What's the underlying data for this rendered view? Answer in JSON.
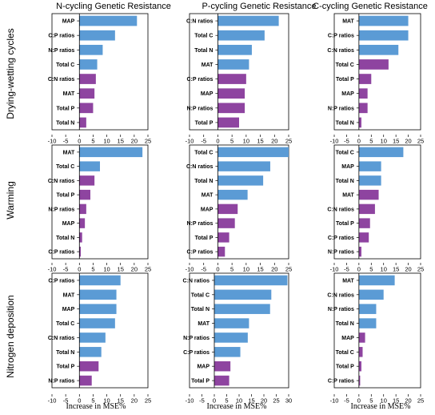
{
  "column_titles": [
    "N-cycling Genetic Resistance",
    "P-cycling Genetic Resistance",
    "C-cycling Genetic Resistance"
  ],
  "row_titles": [
    "Drying-wetting cycles",
    "Warming",
    "Nitrogen deposition"
  ],
  "colors": {
    "blue": "#5b9bd5",
    "purple": "#8e44a0"
  },
  "chart_data": [
    {
      "type": "bar",
      "orientation": "horizontal",
      "title": "N-cycling Genetic Resistance",
      "row": "Drying-wetting cycles",
      "xlim": [
        -10,
        25
      ],
      "xticks": [
        -10,
        -5,
        0,
        5,
        10,
        15,
        20,
        25
      ],
      "xlabel": "",
      "categories": [
        "MAP",
        "C:P ratios",
        "N:P ratios",
        "Total C",
        "C:N ratios",
        "MAT",
        "Total P",
        "Total N"
      ],
      "values": [
        21,
        13,
        8.5,
        6.5,
        6,
        5.5,
        5,
        2.5
      ],
      "colors": [
        "blue",
        "blue",
        "blue",
        "blue",
        "purple",
        "purple",
        "purple",
        "purple"
      ]
    },
    {
      "type": "bar",
      "orientation": "horizontal",
      "title": "P-cycling Genetic Resistance",
      "row": "Drying-wetting cycles",
      "xlim": [
        -10,
        25
      ],
      "xticks": [
        -10,
        -5,
        0,
        5,
        10,
        15,
        20,
        25
      ],
      "xlabel": "",
      "categories": [
        "C:N ratios",
        "Total C",
        "Total N",
        "MAT",
        "C:P ratios",
        "MAP",
        "N:P ratios",
        "Total P"
      ],
      "values": [
        21.5,
        16.5,
        12,
        11,
        10,
        9.5,
        9.5,
        7.5
      ],
      "colors": [
        "blue",
        "blue",
        "blue",
        "blue",
        "purple",
        "purple",
        "purple",
        "purple"
      ]
    },
    {
      "type": "bar",
      "orientation": "horizontal",
      "title": "C-cycling Genetic Resistance",
      "row": "Drying-wetting cycles",
      "xlim": [
        -10,
        25
      ],
      "xticks": [
        -10,
        -5,
        0,
        5,
        10,
        15,
        20,
        25
      ],
      "xlabel": "",
      "categories": [
        "MAT",
        "C:P ratios",
        "C:N ratios",
        "Total C",
        "Total P",
        "MAP",
        "N:P ratios",
        "Total N"
      ],
      "values": [
        20,
        20,
        16,
        12,
        5,
        3.5,
        3.5,
        1
      ],
      "colors": [
        "blue",
        "blue",
        "blue",
        "purple",
        "purple",
        "purple",
        "purple",
        "purple"
      ]
    },
    {
      "type": "bar",
      "orientation": "horizontal",
      "title": "",
      "row": "Warming",
      "xlim": [
        -10,
        25
      ],
      "xticks": [
        -10,
        -5,
        0,
        5,
        10,
        15,
        20,
        25
      ],
      "xlabel": "",
      "categories": [
        "MAT",
        "Total C",
        "C:N ratios",
        "Total P",
        "N:P ratios",
        "MAP",
        "Total N",
        "C:P ratios"
      ],
      "values": [
        23,
        7.5,
        5.5,
        4,
        2.5,
        2,
        1,
        0.5
      ],
      "colors": [
        "blue",
        "blue",
        "purple",
        "purple",
        "purple",
        "purple",
        "purple",
        "purple"
      ]
    },
    {
      "type": "bar",
      "orientation": "horizontal",
      "title": "",
      "row": "Warming",
      "xlim": [
        -10,
        25
      ],
      "xticks": [
        -10,
        -5,
        0,
        5,
        10,
        15,
        20,
        25
      ],
      "xlabel": "",
      "categories": [
        "Total C",
        "C:N ratios",
        "Total N",
        "MAT",
        "MAP",
        "N:P ratios",
        "Total P",
        "C:P ratios"
      ],
      "values": [
        25,
        18.5,
        16,
        10.5,
        7,
        6,
        4,
        2.5
      ],
      "colors": [
        "blue",
        "blue",
        "blue",
        "blue",
        "purple",
        "purple",
        "purple",
        "purple"
      ]
    },
    {
      "type": "bar",
      "orientation": "horizontal",
      "title": "",
      "row": "Warming",
      "xlim": [
        -10,
        25
      ],
      "xticks": [
        -10,
        -5,
        0,
        5,
        10,
        15,
        20,
        25
      ],
      "xlabel": "",
      "categories": [
        "Total C",
        "MAP",
        "Total N",
        "MAT",
        "C:N ratios",
        "Total P",
        "C:P ratios",
        "N:P ratios"
      ],
      "values": [
        18,
        9,
        9,
        8,
        6.5,
        4.5,
        4,
        1
      ],
      "colors": [
        "blue",
        "blue",
        "blue",
        "purple",
        "purple",
        "purple",
        "purple",
        "purple"
      ]
    },
    {
      "type": "bar",
      "orientation": "horizontal",
      "title": "",
      "row": "Nitrogen deposition",
      "xlim": [
        -10,
        25
      ],
      "xticks": [
        -10,
        -5,
        0,
        5,
        10,
        15,
        20,
        25
      ],
      "xlabel": "Increase in MSE%",
      "categories": [
        "C:P ratios",
        "MAT",
        "MAP",
        "Total C",
        "C:N ratios",
        "Total N",
        "Total P",
        "N:P ratios"
      ],
      "values": [
        15,
        13.5,
        13.5,
        13,
        9.5,
        8,
        7,
        4.5
      ],
      "colors": [
        "blue",
        "blue",
        "blue",
        "blue",
        "blue",
        "blue",
        "purple",
        "purple"
      ]
    },
    {
      "type": "bar",
      "orientation": "horizontal",
      "title": "",
      "row": "Nitrogen deposition",
      "xlim": [
        -10,
        30
      ],
      "xticks": [
        -10,
        -5,
        0,
        5,
        10,
        15,
        20,
        25,
        30
      ],
      "xlabel": "Increase in MSE%",
      "categories": [
        "C:N ratios",
        "Total C",
        "Total N",
        "MAT",
        "N:P ratios",
        "C:P ratios",
        "MAP",
        "Total P"
      ],
      "values": [
        29.5,
        23,
        22.5,
        14,
        13.5,
        10.5,
        6.5,
        6
      ],
      "colors": [
        "blue",
        "blue",
        "blue",
        "blue",
        "blue",
        "blue",
        "purple",
        "purple"
      ]
    },
    {
      "type": "bar",
      "orientation": "horizontal",
      "title": "",
      "row": "Nitrogen deposition",
      "xlim": [
        -10,
        25
      ],
      "xticks": [
        -10,
        -5,
        0,
        5,
        10,
        15,
        20,
        25
      ],
      "xlabel": "Increase in MSE%",
      "categories": [
        "MAT",
        "C:N ratios",
        "N:P ratios",
        "Total N",
        "MAP",
        "Total C",
        "Total P",
        "C:P ratios"
      ],
      "values": [
        14.5,
        10,
        7,
        7,
        2.5,
        1.5,
        1,
        0.5
      ],
      "colors": [
        "blue",
        "blue",
        "blue",
        "blue",
        "purple",
        "purple",
        "purple",
        "purple"
      ]
    }
  ]
}
